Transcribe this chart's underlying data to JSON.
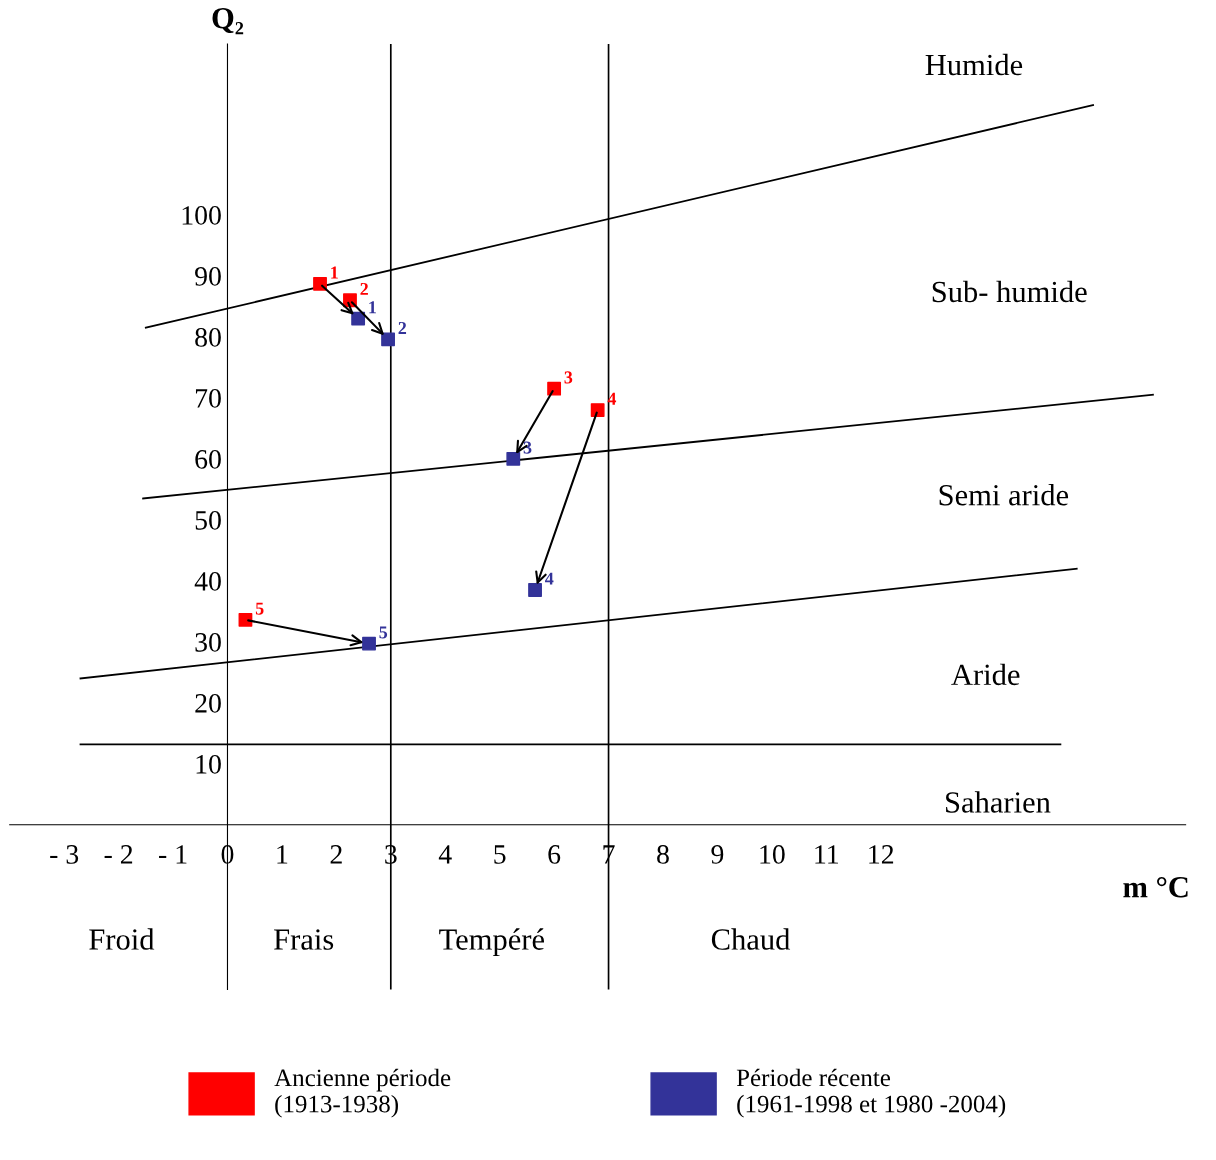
{
  "chart_data": {
    "type": "scatter",
    "xlabel": "m °C",
    "ylabel": "Q₂",
    "xlim": [
      -4,
      17.6
    ],
    "ylim": [
      -27,
      128
    ],
    "xticks": [
      {
        "value": -3,
        "label": "- 3"
      },
      {
        "value": -2,
        "label": "- 2"
      },
      {
        "value": -1,
        "label": "- 1"
      },
      0,
      1,
      2,
      3,
      4,
      5,
      6,
      7,
      8,
      9,
      10,
      11,
      12
    ],
    "yticks": [
      10,
      20,
      30,
      40,
      50,
      60,
      70,
      80,
      90,
      100
    ],
    "grid": false,
    "legend": "bottom",
    "series": [
      {
        "name": "Ancienne période\n(1913-1938)",
        "color": "#ff0000",
        "marker": "square",
        "x": [
          1.7,
          2.25,
          6.0,
          6.8,
          0.33
        ],
        "values": [
          88.7,
          86,
          71.5,
          68,
          33.6
        ]
      },
      {
        "name": "Période récente\n(1961-1998 et 1980 -2004)",
        "color": "#333399",
        "marker": "square",
        "x": [
          2.4,
          2.95,
          5.25,
          5.65,
          2.6
        ],
        "values": [
          83,
          79.6,
          60,
          38.5,
          29.7
        ]
      },
      {
        "type": "line",
        "color": "#000000",
        "x": [
          -1.5,
          15.9
        ],
        "values": [
          81.5,
          118
        ]
      },
      {
        "type": "line",
        "color": "#000000",
        "x": [
          -1.55,
          17.0
        ],
        "values": [
          53.5,
          70.5
        ]
      },
      {
        "type": "line",
        "color": "#000000",
        "x": [
          -2.7,
          15.6
        ],
        "values": [
          24,
          42
        ]
      },
      {
        "type": "line",
        "color": "#000000",
        "x": [
          -2.7,
          15.3
        ],
        "values": [
          13.2,
          13.2
        ]
      }
    ],
    "ref_lines": [
      {
        "axis": "x",
        "value": 3,
        "color": "#000000"
      },
      {
        "axis": "x",
        "value": 7,
        "color": "#000000"
      }
    ],
    "annotations": [
      "Humide",
      "Sub- humide",
      "Semi aride",
      "Aride",
      "Saharien",
      "Froid",
      "Frais",
      "Tempéré",
      "Chaud",
      {
        "text": "1",
        "x": 1.7,
        "y": 88.7
      },
      {
        "text": "2",
        "x": 2.25,
        "y": 86
      },
      {
        "text": "3",
        "x": 6.0,
        "y": 71.5
      },
      {
        "text": "4",
        "x": 6.8,
        "y": 68
      },
      {
        "text": "5",
        "x": 0.33,
        "y": 33.6
      },
      {
        "text": "1",
        "x": 2.4,
        "y": 83
      },
      {
        "text": "2",
        "x": 2.95,
        "y": 79.6
      },
      {
        "text": "3",
        "x": 5.25,
        "y": 60
      },
      {
        "text": "4",
        "x": 5.65,
        "y": 38.5
      },
      {
        "text": "5",
        "x": 2.6,
        "y": 29.7
      }
    ]
  }
}
